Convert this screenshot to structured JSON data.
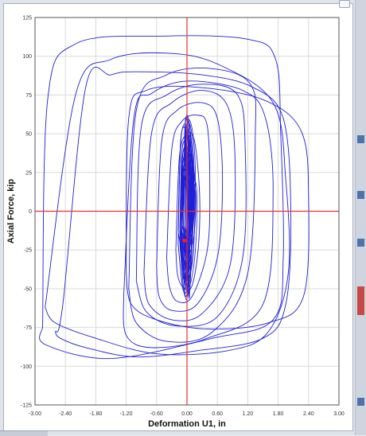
{
  "chart_data": {
    "type": "line",
    "title": "",
    "xlabel": "Deformation U1, in",
    "ylabel": "Axial Force, kip",
    "xlim": [
      -3.0,
      3.0
    ],
    "ylim": [
      -125,
      125
    ],
    "x_ticks": [
      "-3.00",
      "-2.40",
      "-1.80",
      "-1.20",
      "-0.60",
      "0.00",
      "0.60",
      "1.20",
      "1.80",
      "2.40",
      "3.00"
    ],
    "y_ticks": [
      "125",
      "100",
      "75",
      "50",
      "25",
      "0",
      "-25",
      "-50",
      "-75",
      "-100",
      "-125"
    ],
    "grid": true,
    "origin_crosshair_color": "#e8312e",
    "series_color": "#1f1fd6",
    "marker": {
      "x": -0.05,
      "y": -19,
      "color": "#ff1a1a"
    },
    "series": [
      {
        "name": "",
        "kind": "hysteresis-loop",
        "x": [
          -2.85,
          -2.75,
          -2.2,
          -0.5,
          1.2,
          1.75,
          1.85,
          1.9,
          1.7,
          0.5,
          -1.5,
          -2.8,
          -2.85
        ],
        "y": [
          -75,
          72,
          108,
          113,
          111,
          98,
          50,
          -30,
          -70,
          -82,
          -95,
          -86,
          -75
        ]
      },
      {
        "name": "",
        "kind": "hysteresis-loop",
        "x": [
          -2.8,
          -2.2,
          -1.5,
          -0.4,
          0.6,
          1.7,
          1.95,
          2.0,
          1.6,
          0.8,
          -0.6,
          -1.8,
          -2.6,
          -2.8
        ],
        "y": [
          -62,
          75,
          98,
          102,
          95,
          70,
          20,
          -40,
          -78,
          -90,
          -92,
          -82,
          -72,
          -62
        ]
      },
      {
        "name": "",
        "kind": "hysteresis-loop",
        "x": [
          -1.2,
          -1.15,
          -0.8,
          0.2,
          1.5,
          2.25,
          2.4,
          2.3,
          1.6,
          0.4,
          -0.6,
          -1.1,
          -1.2
        ],
        "y": [
          -40,
          60,
          78,
          80,
          72,
          52,
          10,
          -55,
          -72,
          -76,
          -70,
          -60,
          -40
        ]
      },
      {
        "name": "",
        "kind": "hysteresis-loop",
        "x": [
          -1.25,
          -1.05,
          -0.7,
          0.0,
          1.1,
          1.55,
          1.7,
          1.5,
          0.4,
          -0.7,
          -1.2,
          -1.25
        ],
        "y": [
          -55,
          60,
          76,
          84,
          78,
          60,
          10,
          -60,
          -82,
          -88,
          -80,
          -55
        ]
      },
      {
        "name": "",
        "kind": "hysteresis-loop",
        "x": [
          -1.0,
          -0.9,
          -0.4,
          0.3,
          1.0,
          1.15,
          1.1,
          0.6,
          -0.2,
          -0.8,
          -1.0
        ],
        "y": [
          -45,
          55,
          75,
          82,
          75,
          40,
          -30,
          -68,
          -74,
          -65,
          -45
        ]
      },
      {
        "name": "",
        "kind": "hysteresis-loop",
        "x": [
          -0.85,
          -0.7,
          -0.3,
          0.3,
          0.8,
          0.95,
          0.85,
          0.3,
          -0.3,
          -0.75,
          -0.85
        ],
        "y": [
          -40,
          50,
          70,
          78,
          68,
          30,
          -35,
          -66,
          -70,
          -60,
          -40
        ]
      },
      {
        "name": "",
        "kind": "hysteresis-loop",
        "x": [
          -0.6,
          -0.5,
          -0.2,
          0.3,
          0.6,
          0.7,
          0.6,
          0.2,
          -0.3,
          -0.55,
          -0.6
        ],
        "y": [
          -35,
          45,
          65,
          70,
          60,
          20,
          -30,
          -60,
          -64,
          -55,
          -35
        ]
      },
      {
        "name": "",
        "kind": "hysteresis-loop",
        "x": [
          -0.4,
          -0.3,
          -0.1,
          0.2,
          0.4,
          0.45,
          0.4,
          0.1,
          -0.2,
          -0.35,
          -0.4
        ],
        "y": [
          -30,
          40,
          58,
          62,
          55,
          15,
          -25,
          -55,
          -58,
          -48,
          -30
        ]
      },
      {
        "name": "",
        "kind": "hysteresis-loop",
        "x": [
          -0.22,
          -0.15,
          0.0,
          0.15,
          0.25,
          0.22,
          0.1,
          -0.05,
          -0.18,
          -0.22
        ],
        "y": [
          -25,
          35,
          50,
          45,
          10,
          -25,
          -48,
          -50,
          -42,
          -25
        ]
      },
      {
        "name": "",
        "kind": "hysteresis-loop",
        "x": [
          -0.12,
          -0.08,
          0.02,
          0.1,
          0.12,
          0.08,
          0.0,
          -0.08,
          -0.12
        ],
        "y": [
          -20,
          30,
          40,
          30,
          0,
          -30,
          -42,
          -38,
          -20
        ]
      },
      {
        "name": "",
        "kind": "hysteresis-loop",
        "x": [
          -1.15,
          -1.0,
          -0.4,
          0.5,
          1.25,
          1.35,
          1.2,
          0.5,
          -0.4,
          -1.0,
          -1.15
        ],
        "y": [
          -50,
          65,
          88,
          92,
          82,
          50,
          -40,
          -78,
          -84,
          -72,
          -50
        ]
      },
      {
        "name": "",
        "kind": "hysteresis-loop",
        "x": [
          -2.6,
          -2.45,
          -2.0,
          -1.5,
          -1.0,
          0.3,
          1.3,
          1.9,
          2.05,
          1.95,
          1.5,
          0.2,
          -1.0,
          -2.0,
          -2.5,
          -2.6
        ],
        "y": [
          -78,
          -60,
          80,
          88,
          90,
          88,
          80,
          60,
          0,
          -60,
          -82,
          -90,
          -94,
          -88,
          -82,
          -78
        ]
      }
    ]
  }
}
